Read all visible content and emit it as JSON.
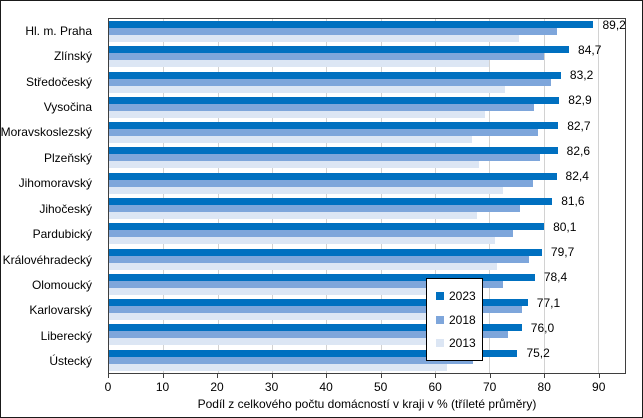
{
  "chart_data": {
    "type": "bar",
    "orientation": "horizontal",
    "xlabel": "Podíl z celkového počtu domácností v kraji v % (tříleté průměry)",
    "xlim": [
      0,
      95
    ],
    "xticks": [
      0,
      10,
      20,
      30,
      40,
      50,
      60,
      70,
      80,
      90
    ],
    "grid": true,
    "legend_position": "inside-center",
    "categories": [
      "Hl. m. Praha",
      "Zlínský",
      "Středočeský",
      "Vysočina",
      "Moravskoslezský",
      "Plzeňský",
      "Jihomoravský",
      "Jihočeský",
      "Pardubický",
      "Královéhradecký",
      "Olomoucký",
      "Karlovarský",
      "Liberecký",
      "Ústecký"
    ],
    "series": [
      {
        "name": "2023",
        "color": "#0070c0",
        "values": [
          89.2,
          84.7,
          83.2,
          82.9,
          82.7,
          82.6,
          82.4,
          81.6,
          80.1,
          79.7,
          78.4,
          77.1,
          76.0,
          75.2
        ]
      },
      {
        "name": "2018",
        "color": "#7ea6db",
        "values": [
          82.5,
          80.0,
          81.4,
          78.2,
          78.9,
          79.3,
          78.1,
          75.6,
          74.3,
          77.3,
          72.6,
          76.1,
          73.5,
          67.0
        ]
      },
      {
        "name": "2013",
        "color": "#dce6f4",
        "values": [
          75.5,
          70.0,
          72.9,
          69.2,
          66.9,
          68.1,
          72.6,
          67.7,
          71.0,
          71.5,
          64.0,
          66.0,
          63.7,
          62.2
        ]
      }
    ],
    "value_labels": [
      "89,2",
      "84,7",
      "83,2",
      "82,9",
      "82,7",
      "82,6",
      "82,4",
      "81,6",
      "80,1",
      "79,7",
      "78,4",
      "77,1",
      "76,0",
      "75,2"
    ],
    "value_labels_series": "2023"
  },
  "colors": {
    "gridline": "#d2d2d2",
    "axis": "#3f3f3f",
    "text": "#000000",
    "background": "#ffffff"
  }
}
